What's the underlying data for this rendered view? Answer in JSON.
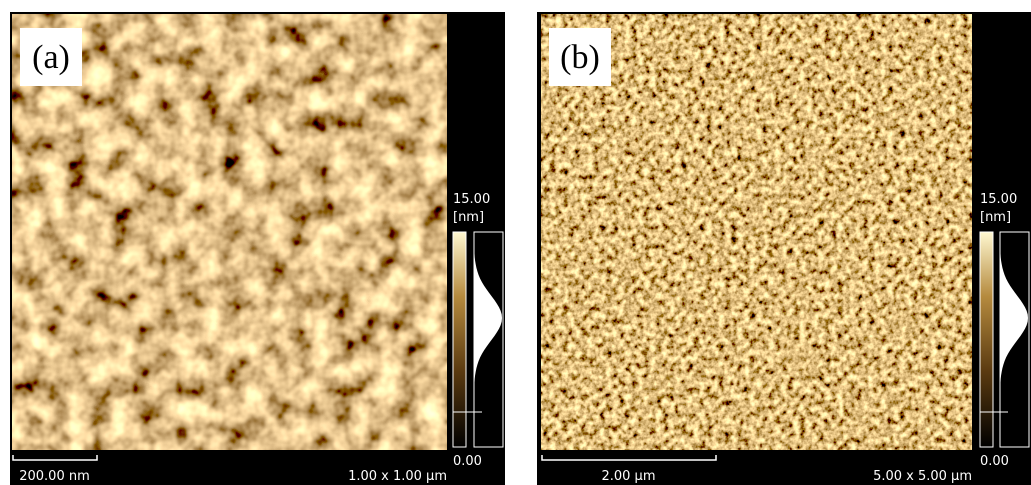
{
  "panels": [
    {
      "label": "(a)",
      "colorbar_max": "15.00",
      "colorbar_unit": "[nm]",
      "colorbar_min": "0.00",
      "scale_bar": "200.00 nm",
      "scan_size": "1.00 x 1.00 µm"
    },
    {
      "label": "(b)",
      "colorbar_max": "15.00",
      "colorbar_unit": "[nm]",
      "colorbar_min": "0.00",
      "scale_bar": "2.00 µm",
      "scan_size": "5.00 x 5.00 µm"
    }
  ]
}
